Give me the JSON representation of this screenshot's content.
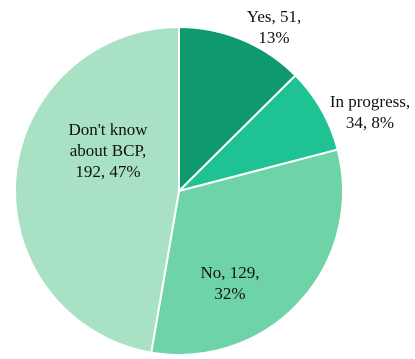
{
  "chart_data": {
    "type": "pie",
    "start_angle_deg": 0,
    "direction": "clockwise",
    "slices": [
      {
        "category": "Yes",
        "count": 51,
        "percent": "13%",
        "color": "#0e9a6e",
        "label_lines": [
          "Yes, 51,",
          "13%"
        ]
      },
      {
        "category": "In progress",
        "count": 34,
        "percent": "8%",
        "color": "#1fc393",
        "label_lines": [
          "In progress,",
          "34, 8%"
        ]
      },
      {
        "category": "No",
        "count": 129,
        "percent": "32%",
        "color": "#6fd3a8",
        "label_lines": [
          "No, 129,",
          "32%"
        ]
      },
      {
        "category": "Don't know about BCP",
        "count": 192,
        "percent": "47%",
        "color": "#a9e1c5",
        "label_lines": [
          "Don't know",
          "about BCP,",
          "192, 47%"
        ]
      }
    ]
  }
}
